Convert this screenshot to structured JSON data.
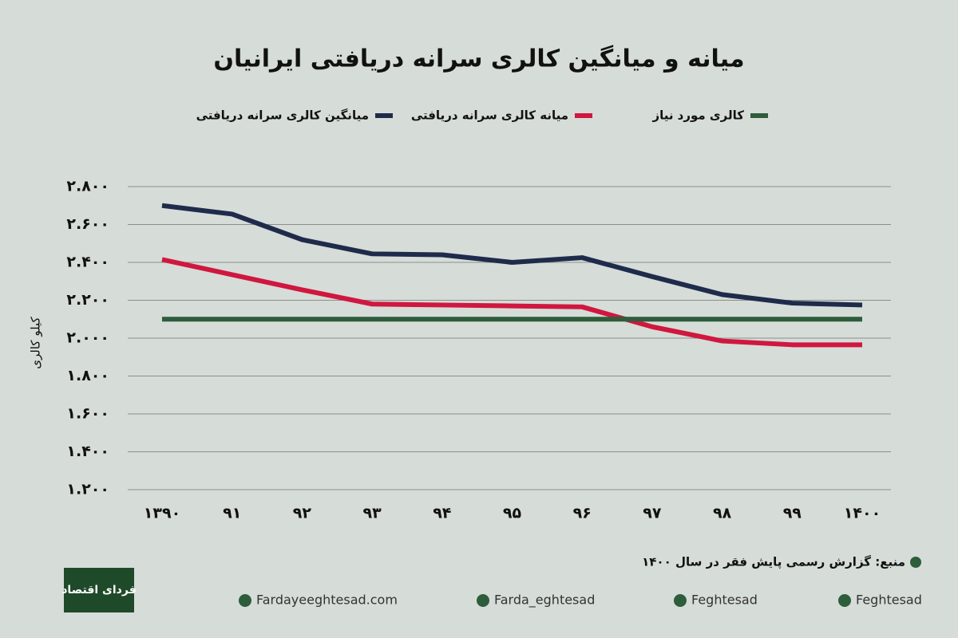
{
  "chart_data": {
    "type": "line",
    "title": "میانه و میانگین کالری سرانه دریافتی ایرانیان",
    "y_label": "کیلو کالری",
    "categories": [
      "۱۳۹۰",
      "۹۱",
      "۹۲",
      "۹۳",
      "۹۴",
      "۹۵",
      "۹۶",
      "۹۷",
      "۹۸",
      "۹۹",
      "۱۴۰۰"
    ],
    "series": [
      {
        "name": "میانگین کالری سرانه دریافتی",
        "color": "#1f2b4b",
        "values": [
          2700,
          2655,
          2520,
          2445,
          2440,
          2400,
          2425,
          2325,
          2230,
          2185,
          2175
        ]
      },
      {
        "name": "میانه کالری سرانه دریافتی",
        "color": "#d0173f",
        "values": [
          2415,
          2335,
          2255,
          2180,
          2175,
          2170,
          2165,
          2060,
          1985,
          1965,
          1965
        ]
      },
      {
        "name": "کالری مورد نیاز",
        "color": "#2e5d3b",
        "values": [
          2100,
          2100,
          2100,
          2100,
          2100,
          2100,
          2100,
          2100,
          2100,
          2100,
          2100
        ]
      }
    ],
    "ylim": [
      1200,
      2800
    ],
    "yticks": [
      {
        "value": 1200,
        "label": "۱.۲۰۰"
      },
      {
        "value": 1400,
        "label": "۱.۴۰۰"
      },
      {
        "value": 1600,
        "label": "۱.۶۰۰"
      },
      {
        "value": 1800,
        "label": "۱.۸۰۰"
      },
      {
        "value": 2000,
        "label": "۲.۰۰۰"
      },
      {
        "value": 2200,
        "label": "۲.۲۰۰"
      },
      {
        "value": 2400,
        "label": "۲.۴۰۰"
      },
      {
        "value": 2600,
        "label": "۲.۶۰۰"
      },
      {
        "value": 2800,
        "label": "۲.۸۰۰"
      }
    ],
    "grid": true
  },
  "source": "منبع: گزارش رسمی پایش فقر در سال ۱۴۰۰",
  "logo": "فردای اقتصاد",
  "social": [
    "Fardayeeghtesad.com",
    "Farda_eghtesad",
    "Feghtesad",
    "Feghtesad"
  ]
}
